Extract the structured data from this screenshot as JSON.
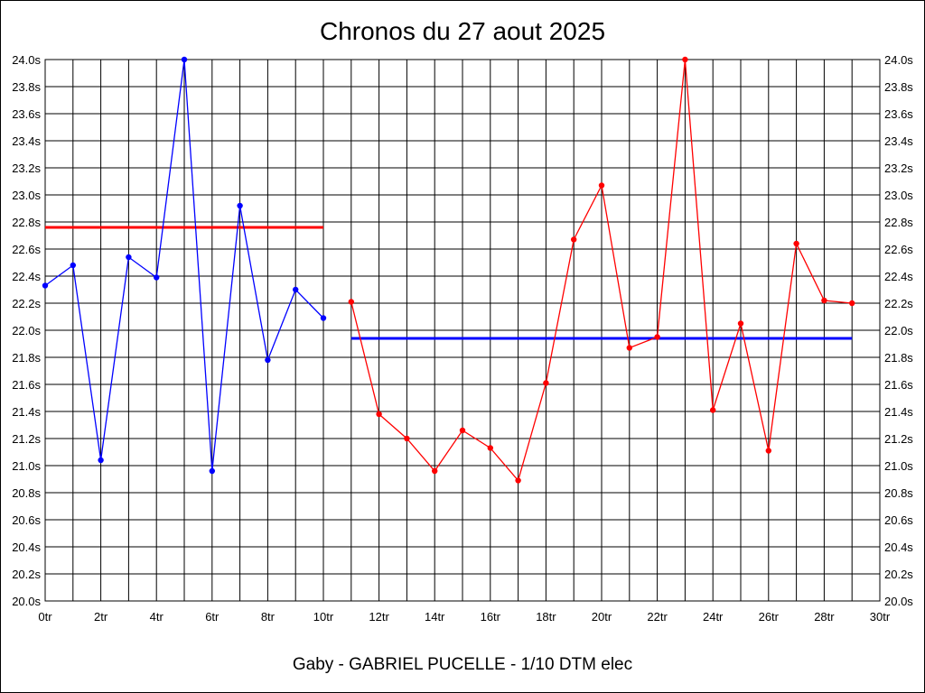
{
  "chart_data": {
    "type": "line",
    "title": "Chronos du 27 aout 2025",
    "footer": "Gaby - GABRIEL PUCELLE - 1/10 DTM elec",
    "xlim": [
      0,
      30
    ],
    "ylim": [
      20.0,
      24.0
    ],
    "x_ticks": [
      "0tr",
      "2tr",
      "4tr",
      "6tr",
      "8tr",
      "10tr",
      "12tr",
      "14tr",
      "16tr",
      "18tr",
      "20tr",
      "22tr",
      "24tr",
      "26tr",
      "28tr",
      "30tr"
    ],
    "y_ticks": [
      "20.0s",
      "20.2s",
      "20.4s",
      "20.6s",
      "20.8s",
      "21.0s",
      "21.2s",
      "21.4s",
      "21.6s",
      "21.8s",
      "22.0s",
      "22.2s",
      "22.4s",
      "22.6s",
      "22.8s",
      "23.0s",
      "23.2s",
      "23.4s",
      "23.6s",
      "23.8s",
      "24.0s"
    ],
    "grid": true,
    "series": [
      {
        "color": "#0000ff",
        "x": [
          0,
          1,
          2,
          3,
          4,
          5,
          6,
          7,
          8,
          9,
          10
        ],
        "values": [
          22.33,
          22.48,
          21.04,
          22.54,
          22.39,
          24.0,
          20.96,
          22.92,
          21.78,
          22.3,
          22.09
        ]
      },
      {
        "color": "#ff0000",
        "x": [
          11,
          12,
          13,
          14,
          15,
          16,
          17,
          18,
          19,
          20,
          21,
          22,
          23,
          24,
          25,
          26,
          27,
          28,
          29
        ],
        "values": [
          22.21,
          21.38,
          21.2,
          20.96,
          21.26,
          21.13,
          20.89,
          21.61,
          22.67,
          23.07,
          21.87,
          21.95,
          24.0,
          21.41,
          22.05,
          21.11,
          22.64,
          22.22,
          22.2
        ]
      }
    ],
    "reference_lines": [
      {
        "color": "#ff0000",
        "y": 22.76,
        "x_start": 0,
        "x_end": 10
      },
      {
        "color": "#0000ff",
        "y": 21.94,
        "x_start": 11,
        "x_end": 29
      }
    ]
  }
}
